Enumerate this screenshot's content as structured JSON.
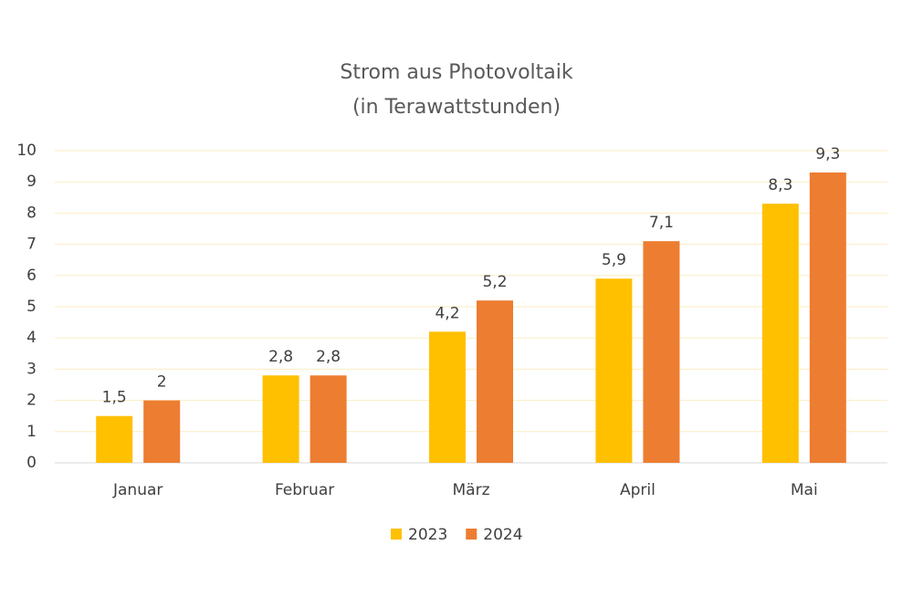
{
  "chart_data": {
    "type": "bar",
    "title": "Strom aus Photovoltaik",
    "subtitle": "(in Terawattstunden)",
    "categories": [
      "Januar",
      "Februar",
      "März",
      "April",
      "Mai"
    ],
    "series": [
      {
        "name": "2023",
        "color": "#ffc000",
        "values": [
          1.5,
          2.8,
          4.2,
          5.9,
          8.3
        ],
        "value_labels": [
          "1,5",
          "2,8",
          "4,2",
          "5,9",
          "8,3"
        ]
      },
      {
        "name": "2024",
        "color": "#ed7d31",
        "values": [
          2,
          2.8,
          5.2,
          7.1,
          9.3
        ],
        "value_labels": [
          "2",
          "2,8",
          "5,2",
          "7,1",
          "9,3"
        ]
      }
    ],
    "ylim": [
      0,
      10
    ],
    "yticks": [
      0,
      1,
      2,
      3,
      4,
      5,
      6,
      7,
      8,
      9,
      10
    ],
    "grid": true,
    "legend": "bottom"
  }
}
